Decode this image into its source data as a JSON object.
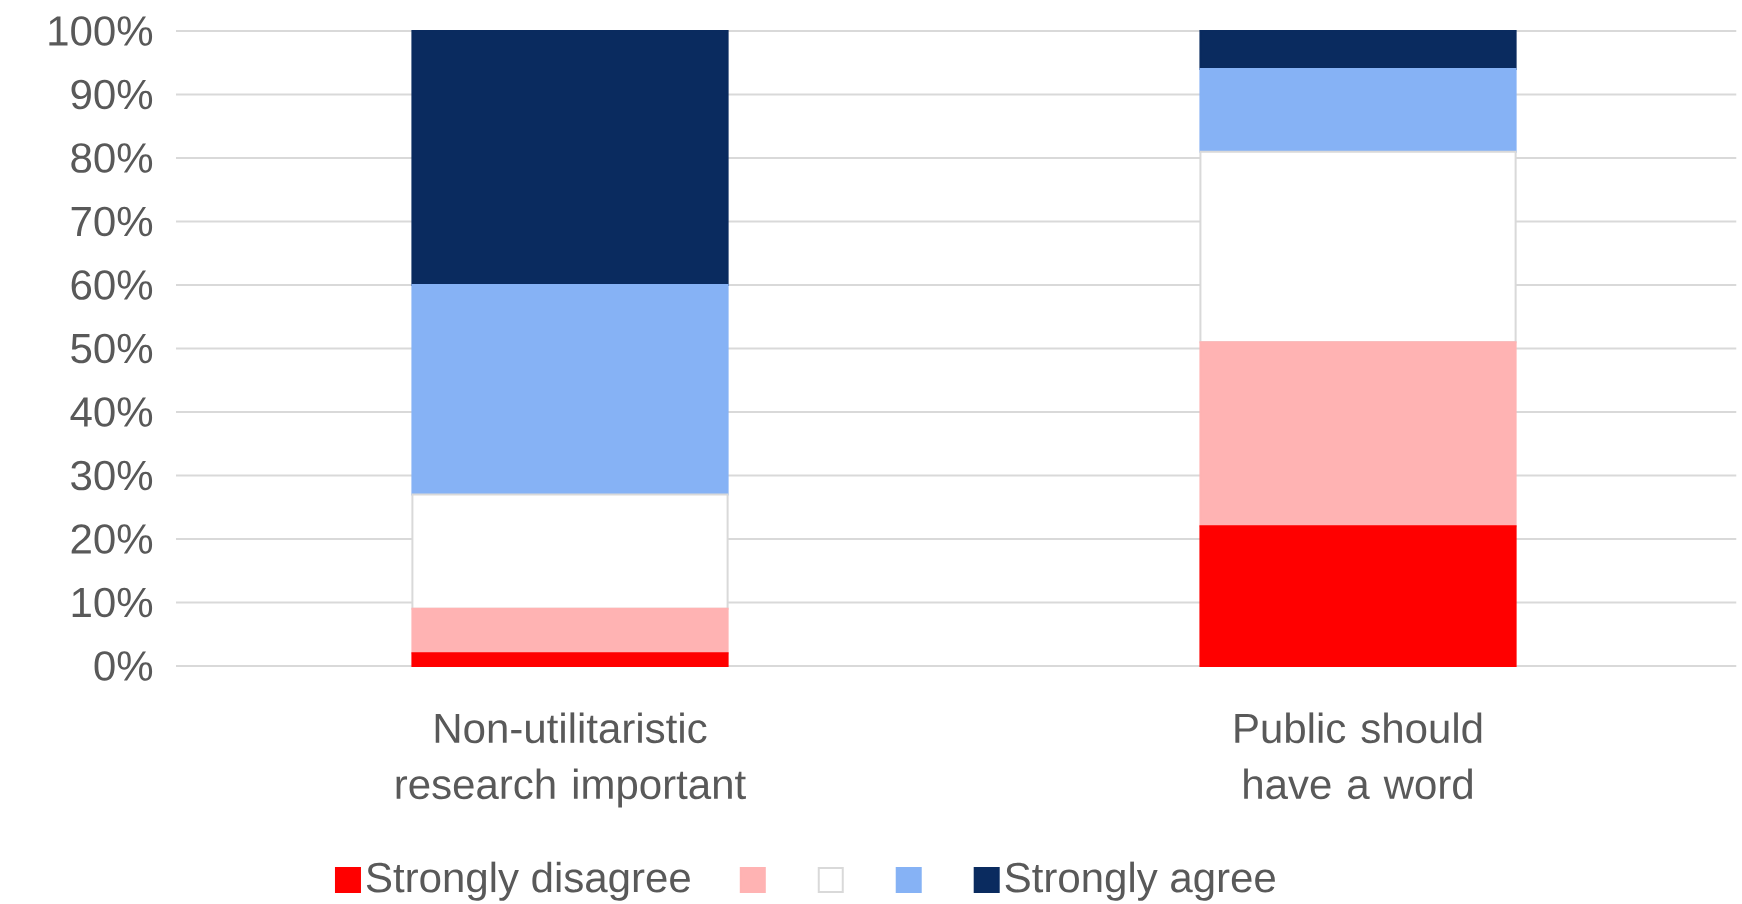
{
  "chart_data": {
    "type": "bar",
    "stacked": true,
    "categories": [
      "Non-utilitaristic research important",
      "Public should have a word"
    ],
    "series": [
      {
        "name": "Strongly disagree",
        "color": "#ff0000",
        "values": [
          2,
          22
        ]
      },
      {
        "color": "#ffb3b3",
        "values": [
          7,
          29
        ]
      },
      {
        "color": "#ffffff",
        "values": [
          18,
          30
        ]
      },
      {
        "color": "#86b2f5",
        "values": [
          33,
          13
        ]
      },
      {
        "name": "Strongly agree",
        "color": "#0a2b5f",
        "values": [
          40,
          6
        ]
      }
    ],
    "ylim": [
      0,
      100
    ],
    "yticks": [
      {
        "value": 0,
        "label": "0%"
      },
      {
        "value": 10,
        "label": "10%"
      },
      {
        "value": 20,
        "label": "20%"
      },
      {
        "value": 30,
        "label": "30%"
      },
      {
        "value": 40,
        "label": "40%"
      },
      {
        "value": 50,
        "label": "50%"
      },
      {
        "value": 60,
        "label": "60%"
      },
      {
        "value": 70,
        "label": "70%"
      },
      {
        "value": 80,
        "label": "80%"
      },
      {
        "value": 90,
        "label": "90%"
      },
      {
        "value": 100,
        "label": "100%"
      }
    ],
    "grid": "y",
    "legend": "bottom"
  }
}
